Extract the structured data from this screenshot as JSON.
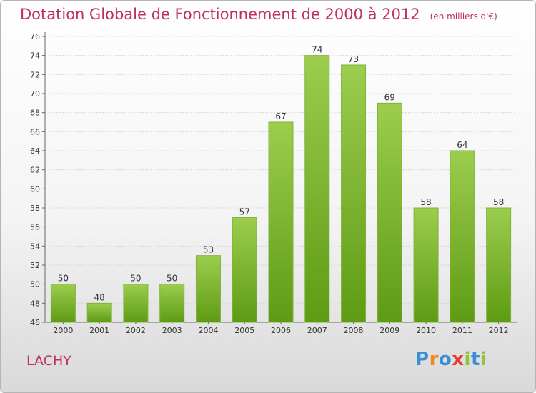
{
  "title": "Dotation Globale de Fonctionnement de 2000 à 2012",
  "unit_note": "(en milliers d'€)",
  "commune": "LACHY",
  "logo": {
    "text": "Proxiti",
    "letters": [
      "P",
      "r",
      "o",
      "x",
      "i",
      "t",
      "i"
    ],
    "colors": [
      "#3a8fd8",
      "#f08a1e",
      "#3a8fd8",
      "#e63b2e",
      "#8cc63f",
      "#3a8fd8",
      "#8cc63f"
    ]
  },
  "colors": {
    "bar_top": "#9ccd4e",
    "bar_bottom": "#5e9b14",
    "title": "#c0305a",
    "grid": "#d8d8d8"
  },
  "chart_data": {
    "type": "bar",
    "title": "Dotation Globale de Fonctionnement de 2000 à 2012",
    "subtitle": "(en milliers d'€)",
    "categories": [
      "2000",
      "2001",
      "2002",
      "2003",
      "2004",
      "2005",
      "2006",
      "2007",
      "2008",
      "2009",
      "2010",
      "2011",
      "2012"
    ],
    "values": [
      50,
      48,
      50,
      50,
      53,
      57,
      67,
      74,
      73,
      69,
      58,
      64,
      58
    ],
    "ylim": [
      46,
      76
    ],
    "yticks": [
      46,
      48,
      50,
      52,
      54,
      56,
      58,
      60,
      62,
      64,
      66,
      68,
      70,
      72,
      74,
      76
    ],
    "grid": true,
    "xlabel": "",
    "ylabel": ""
  }
}
